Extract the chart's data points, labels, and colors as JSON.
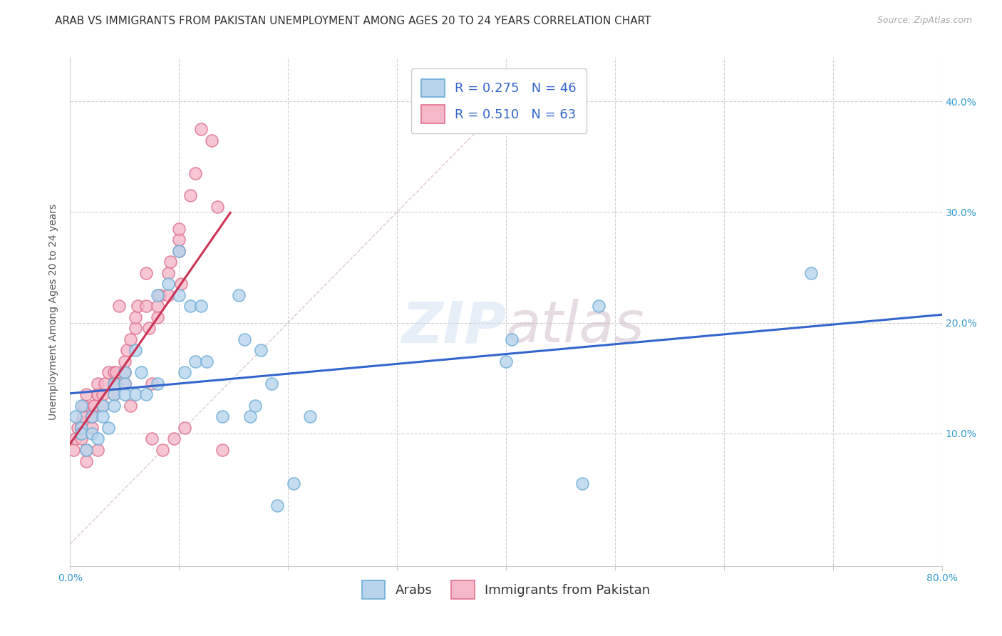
{
  "title": "ARAB VS IMMIGRANTS FROM PAKISTAN UNEMPLOYMENT AMONG AGES 20 TO 24 YEARS CORRELATION CHART",
  "source": "Source: ZipAtlas.com",
  "ylabel": "Unemployment Among Ages 20 to 24 years",
  "xlim": [
    0,
    0.8
  ],
  "ylim": [
    -0.02,
    0.44
  ],
  "xticks": [
    0.0,
    0.1,
    0.2,
    0.3,
    0.4,
    0.5,
    0.6,
    0.7,
    0.8
  ],
  "xticklabels": [
    "0.0%",
    "",
    "",
    "",
    "",
    "",
    "",
    "",
    "80.0%"
  ],
  "yticks": [
    0.0,
    0.1,
    0.2,
    0.3,
    0.4
  ],
  "yticklabels": [
    "",
    "10.0%",
    "20.0%",
    "30.0%",
    "40.0%"
  ],
  "watermark": "ZIPatlas",
  "legend_arab_r": "R = 0.275",
  "legend_arab_n": "N = 46",
  "legend_pak_r": "R = 0.510",
  "legend_pak_n": "N = 63",
  "arab_color": "#b8d4ed",
  "arab_edge": "#6baed6",
  "pak_color": "#f4b8c8",
  "pak_edge": "#e07090",
  "arab_line_color": "#3366cc",
  "pak_line_color": "#cc3355",
  "diag_line_color": "#d0b0b8",
  "arab_scatter_x": [
    0.005,
    0.01,
    0.01,
    0.01,
    0.015,
    0.02,
    0.02,
    0.025,
    0.03,
    0.03,
    0.035,
    0.04,
    0.04,
    0.04,
    0.05,
    0.05,
    0.05,
    0.06,
    0.06,
    0.065,
    0.07,
    0.08,
    0.08,
    0.09,
    0.1,
    0.1,
    0.105,
    0.11,
    0.115,
    0.12,
    0.125,
    0.14,
    0.155,
    0.16,
    0.165,
    0.17,
    0.175,
    0.185,
    0.19,
    0.205,
    0.22,
    0.4,
    0.405,
    0.47,
    0.485,
    0.68
  ],
  "arab_scatter_y": [
    0.115,
    0.125,
    0.105,
    0.1,
    0.085,
    0.115,
    0.1,
    0.095,
    0.125,
    0.115,
    0.105,
    0.145,
    0.135,
    0.125,
    0.155,
    0.145,
    0.135,
    0.175,
    0.135,
    0.155,
    0.135,
    0.225,
    0.145,
    0.235,
    0.265,
    0.225,
    0.155,
    0.215,
    0.165,
    0.215,
    0.165,
    0.115,
    0.225,
    0.185,
    0.115,
    0.125,
    0.175,
    0.145,
    0.035,
    0.055,
    0.115,
    0.165,
    0.185,
    0.055,
    0.215,
    0.245
  ],
  "pak_scatter_x": [
    0.003,
    0.005,
    0.007,
    0.01,
    0.01,
    0.01,
    0.012,
    0.012,
    0.015,
    0.015,
    0.015,
    0.02,
    0.02,
    0.02,
    0.022,
    0.022,
    0.025,
    0.025,
    0.025,
    0.025,
    0.03,
    0.03,
    0.032,
    0.035,
    0.04,
    0.04,
    0.04,
    0.042,
    0.042,
    0.045,
    0.05,
    0.05,
    0.05,
    0.052,
    0.055,
    0.055,
    0.06,
    0.06,
    0.062,
    0.07,
    0.07,
    0.072,
    0.075,
    0.075,
    0.08,
    0.08,
    0.082,
    0.085,
    0.09,
    0.09,
    0.092,
    0.095,
    0.1,
    0.1,
    0.1,
    0.102,
    0.105,
    0.11,
    0.115,
    0.12,
    0.13,
    0.135,
    0.14
  ],
  "pak_scatter_y": [
    0.085,
    0.095,
    0.105,
    0.095,
    0.105,
    0.11,
    0.115,
    0.125,
    0.135,
    0.085,
    0.075,
    0.115,
    0.105,
    0.115,
    0.125,
    0.125,
    0.135,
    0.135,
    0.145,
    0.085,
    0.125,
    0.135,
    0.145,
    0.155,
    0.135,
    0.145,
    0.155,
    0.155,
    0.145,
    0.215,
    0.145,
    0.155,
    0.165,
    0.175,
    0.185,
    0.125,
    0.195,
    0.205,
    0.215,
    0.215,
    0.245,
    0.195,
    0.145,
    0.095,
    0.205,
    0.215,
    0.225,
    0.085,
    0.225,
    0.245,
    0.255,
    0.095,
    0.265,
    0.275,
    0.285,
    0.235,
    0.105,
    0.315,
    0.335,
    0.375,
    0.365,
    0.305,
    0.085
  ],
  "background_color": "#ffffff",
  "grid_color": "#d0d0d0",
  "title_fontsize": 11,
  "axis_fontsize": 10,
  "tick_fontsize": 10,
  "legend_fontsize": 13
}
